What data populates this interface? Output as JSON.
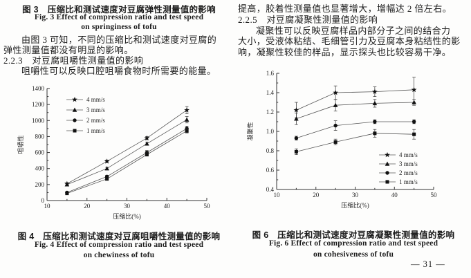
{
  "page": {
    "page_number": "— 31 —"
  },
  "left_column": {
    "fig3_caption_zh": "图 3　压缩比和测试速度对豆腐弹性测量值的影响",
    "fig3_caption_en1": "Fig. 3 Effect of compression ratio and test speed",
    "fig3_caption_en2": "on springiness of tofu",
    "para1_line1": "由图 3 可知，不同的压缩比和测试速度对豆腐的",
    "para1_line2": "弹性测量值都没有明显的影响。",
    "heading_223": "2.2.3　对豆腐咀嚼性测量值的影响",
    "para2_line1": "咀嚼性可以反映口腔咀嚼食物时所需要的能量。",
    "fig4_caption_zh": "图 4　压缩比和测试速度对豆腐咀嚼性测量值的影响",
    "fig4_caption_en1": "Fig. 4 Effect of compression ratio and test speed",
    "fig4_caption_en2": "on chewiness of tofu"
  },
  "right_column": {
    "para0_line1": "提高，胶着性测量值也显著增大，增幅达 2 倍左右。",
    "heading_225": "2.2.5　对豆腐凝聚性测量值的影响",
    "para1_line1": "凝聚性可以反映豆腐样品内部分子之间的结合力",
    "para1_line2": "大小，受液体粘结、毛细管引力及豆腐本身粘结性的影",
    "para1_line3": "响，凝聚性较佳的样品，显示探头也比较容易干净。",
    "fig6_caption_zh": "图 6　压缩比和测试速度对豆腐凝聚性测量值的影响",
    "fig6_caption_en1": "Fig. 6 Effect of compression ratio and test speed",
    "fig6_caption_en2": "on cohesiveness of tofu"
  },
  "colors": {
    "ink": "#1c1c1c",
    "axis": "#333333",
    "series_line": "#555555",
    "marker": "#111111"
  },
  "chart_data": [
    {
      "id": "fig4",
      "type": "line",
      "title": "",
      "xlabel": "压缩比(%)",
      "ylabel": "咀嚼性",
      "xlim": [
        10,
        50
      ],
      "ylim": [
        0,
        1400
      ],
      "xticks": [
        10,
        20,
        30,
        40,
        50
      ],
      "yticks": [
        0,
        200,
        400,
        600,
        800,
        1000,
        1200,
        1400
      ],
      "xminor": 5,
      "yminor": 100,
      "ytick_decimals": 0,
      "grid": false,
      "legend_position": "upper-left",
      "x": [
        15,
        25,
        35,
        45
      ],
      "series": [
        {
          "name": "4 mm/s",
          "marker": "star",
          "values": [
            210,
            490,
            780,
            1130
          ],
          "errors": [
            12,
            15,
            20,
            45
          ]
        },
        {
          "name": "3 mm/s",
          "marker": "triangle",
          "values": [
            200,
            400,
            710,
            1010
          ],
          "errors": [
            12,
            15,
            20,
            40
          ]
        },
        {
          "name": "2 mm/s",
          "marker": "circle",
          "values": [
            100,
            300,
            600,
            900
          ],
          "errors": [
            10,
            15,
            25,
            30
          ]
        },
        {
          "name": "1 mm/s",
          "marker": "square",
          "values": [
            90,
            270,
            575,
            870
          ],
          "errors": [
            10,
            15,
            20,
            25
          ]
        }
      ]
    },
    {
      "id": "fig6",
      "type": "line",
      "title": "",
      "xlabel": "压缩比(%)",
      "ylabel": "凝聚性",
      "xlim": [
        10,
        50
      ],
      "ylim": [
        0.4,
        1.6
      ],
      "xticks": [
        10,
        20,
        30,
        40,
        50
      ],
      "yticks": [
        0.4,
        0.6,
        0.8,
        1.0,
        1.2,
        1.4,
        1.6
      ],
      "xminor": 5,
      "yminor": 0.1,
      "ytick_decimals": 1,
      "grid": false,
      "legend_position": "lower-right",
      "x": [
        15,
        25,
        35,
        45
      ],
      "series": [
        {
          "name": "4 mm/s",
          "marker": "star",
          "values": [
            1.22,
            1.4,
            1.41,
            1.43
          ],
          "errors": [
            0.08,
            0.07,
            0.05,
            0.13
          ]
        },
        {
          "name": "3 mm/s",
          "marker": "triangle",
          "values": [
            1.13,
            1.27,
            1.29,
            1.3
          ],
          "errors": [
            0.06,
            0.06,
            0.04,
            0.03
          ]
        },
        {
          "name": "2 mm/s",
          "marker": "circle",
          "values": [
            0.93,
            1.06,
            1.1,
            1.1
          ],
          "errors": [
            0.02,
            0.05,
            0.02,
            0.02
          ]
        },
        {
          "name": "1 mm/s",
          "marker": "square",
          "values": [
            0.79,
            0.89,
            0.98,
            0.97
          ],
          "errors": [
            0.03,
            0.03,
            0.04,
            0.05
          ]
        }
      ]
    }
  ]
}
